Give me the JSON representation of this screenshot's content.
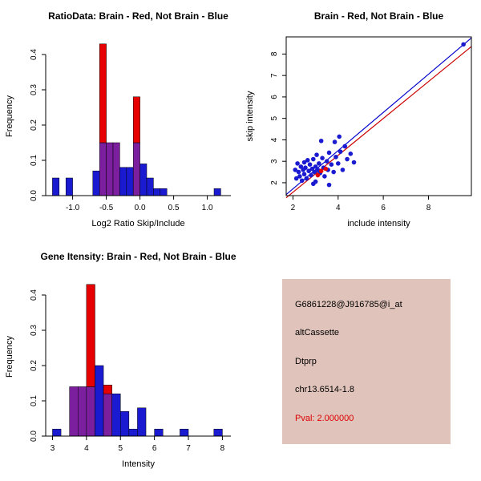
{
  "colors": {
    "blue": "#1a1ad1",
    "red": "#e60000",
    "overlap": "#7b1f9e",
    "line_blue": "#0000cc",
    "line_red": "#cc0000",
    "axis": "#000000",
    "info_box_bg": "#e0c3ba",
    "pval_red": "#dd0000",
    "text_black": "#000000"
  },
  "chart_data": [
    {
      "id": "ratio_hist",
      "type": "histogram",
      "title": "RatioData: Brain - Red, Not Brain - Blue",
      "xlabel": "Log2 Ratio Skip/Include",
      "ylabel": "Frequency",
      "xlim": [
        -1.4,
        1.35
      ],
      "ylim": [
        0,
        0.45
      ],
      "xticks": [
        {
          "v": -1.0,
          "t": "-1.0"
        },
        {
          "v": -0.5,
          "t": "-0.5"
        },
        {
          "v": 0.0,
          "t": "0.0"
        },
        {
          "v": 0.5,
          "t": "0.5"
        },
        {
          "v": 1.0,
          "t": "1.0"
        }
      ],
      "yticks": [
        {
          "v": 0.0,
          "t": "0.0"
        },
        {
          "v": 0.1,
          "t": "0.1"
        },
        {
          "v": 0.2,
          "t": "0.2"
        },
        {
          "v": 0.3,
          "t": "0.3"
        },
        {
          "v": 0.4,
          "t": "0.4"
        }
      ],
      "bin_width": 0.1,
      "blue_bins": [
        [
          -1.3,
          0.05
        ],
        [
          -1.1,
          0.05
        ],
        [
          -0.7,
          0.07
        ],
        [
          -0.6,
          0.15
        ],
        [
          -0.5,
          0.15
        ],
        [
          -0.4,
          0.15
        ],
        [
          -0.3,
          0.08
        ],
        [
          -0.2,
          0.08
        ],
        [
          -0.1,
          0.15
        ],
        [
          0.0,
          0.09
        ],
        [
          0.1,
          0.05
        ],
        [
          0.2,
          0.02
        ],
        [
          0.3,
          0.02
        ],
        [
          1.1,
          0.02
        ]
      ],
      "red_bins": [
        [
          -0.6,
          0.43
        ],
        [
          -0.5,
          0.15
        ],
        [
          -0.4,
          0.15
        ],
        [
          -0.1,
          0.28
        ]
      ]
    },
    {
      "id": "scatter",
      "type": "scatter",
      "title": "Brain - Red, Not Brain - Blue",
      "xlabel": "include intensity",
      "ylabel": "skip intensity",
      "xlim": [
        1.7,
        9.9
      ],
      "ylim": [
        1.4,
        8.8
      ],
      "xticks": [
        {
          "v": 2,
          "t": "2"
        },
        {
          "v": 4,
          "t": "4"
        },
        {
          "v": 6,
          "t": "6"
        },
        {
          "v": 8,
          "t": "8"
        }
      ],
      "yticks": [
        {
          "v": 2,
          "t": "2"
        },
        {
          "v": 3,
          "t": "3"
        },
        {
          "v": 4,
          "t": "4"
        },
        {
          "v": 5,
          "t": "5"
        },
        {
          "v": 6,
          "t": "6"
        },
        {
          "v": 7,
          "t": "7"
        },
        {
          "v": 8,
          "t": "8"
        }
      ],
      "blue_points": [
        [
          2.1,
          2.6
        ],
        [
          2.15,
          2.2
        ],
        [
          2.2,
          2.9
        ],
        [
          2.25,
          2.5
        ],
        [
          2.3,
          2.3
        ],
        [
          2.35,
          2.75
        ],
        [
          2.4,
          2.1
        ],
        [
          2.45,
          2.6
        ],
        [
          2.5,
          2.95
        ],
        [
          2.5,
          2.4
        ],
        [
          2.55,
          2.7
        ],
        [
          2.6,
          2.2
        ],
        [
          2.65,
          3.05
        ],
        [
          2.7,
          2.55
        ],
        [
          2.75,
          2.85
        ],
        [
          2.8,
          2.35
        ],
        [
          2.85,
          2.65
        ],
        [
          2.9,
          3.1
        ],
        [
          2.95,
          2.5
        ],
        [
          3.0,
          2.75
        ],
        [
          3.0,
          2.05
        ],
        [
          3.05,
          3.3
        ],
        [
          3.1,
          2.6
        ],
        [
          3.15,
          2.9
        ],
        [
          3.2,
          2.45
        ],
        [
          3.3,
          3.15
        ],
        [
          3.35,
          2.7
        ],
        [
          3.4,
          2.3
        ],
        [
          3.5,
          3.0
        ],
        [
          3.55,
          2.6
        ],
        [
          3.6,
          3.4
        ],
        [
          3.7,
          2.85
        ],
        [
          3.8,
          2.5
        ],
        [
          3.85,
          3.9
        ],
        [
          3.9,
          3.2
        ],
        [
          4.0,
          2.9
        ],
        [
          4.05,
          4.15
        ],
        [
          4.1,
          3.45
        ],
        [
          4.2,
          2.6
        ],
        [
          4.3,
          3.7
        ],
        [
          4.4,
          3.1
        ],
        [
          4.55,
          3.35
        ],
        [
          4.7,
          2.95
        ],
        [
          3.25,
          3.95
        ],
        [
          2.9,
          1.95
        ],
        [
          3.6,
          1.9
        ],
        [
          9.55,
          8.45
        ]
      ],
      "red_points": [
        [
          3.25,
          2.55
        ],
        [
          3.45,
          2.65
        ],
        [
          3.1,
          2.35
        ]
      ],
      "lines": [
        {
          "name": "fit-line-blue",
          "color_key": "line_blue",
          "x1": 1.7,
          "y1": 1.45,
          "x2": 9.9,
          "y2": 8.75
        },
        {
          "name": "fit-line-red",
          "color_key": "line_red",
          "x1": 1.7,
          "y1": 1.3,
          "x2": 9.9,
          "y2": 8.35
        }
      ]
    },
    {
      "id": "gene_hist",
      "type": "histogram",
      "title": "Gene Itensity: Brain - Red, Not Brain - Blue",
      "xlabel": "Intensity",
      "ylabel": "Frequency",
      "xlim": [
        2.8,
        8.25
      ],
      "ylim": [
        0,
        0.45
      ],
      "xticks": [
        {
          "v": 3,
          "t": "3"
        },
        {
          "v": 4,
          "t": "4"
        },
        {
          "v": 5,
          "t": "5"
        },
        {
          "v": 6,
          "t": "6"
        },
        {
          "v": 7,
          "t": "7"
        },
        {
          "v": 8,
          "t": "8"
        }
      ],
      "yticks": [
        {
          "v": 0.0,
          "t": "0.0"
        },
        {
          "v": 0.1,
          "t": "0.1"
        },
        {
          "v": 0.2,
          "t": "0.2"
        },
        {
          "v": 0.3,
          "t": "0.3"
        },
        {
          "v": 0.4,
          "t": "0.4"
        }
      ],
      "bin_width": 0.25,
      "blue_bins": [
        [
          3.0,
          0.02
        ],
        [
          3.5,
          0.14
        ],
        [
          3.75,
          0.14
        ],
        [
          4.0,
          0.14
        ],
        [
          4.25,
          0.2
        ],
        [
          4.5,
          0.12
        ],
        [
          4.75,
          0.12
        ],
        [
          5.0,
          0.07
        ],
        [
          5.25,
          0.02
        ],
        [
          5.5,
          0.08
        ],
        [
          6.0,
          0.02
        ],
        [
          6.75,
          0.02
        ],
        [
          7.75,
          0.02
        ]
      ],
      "red_bins": [
        [
          3.5,
          0.14
        ],
        [
          3.75,
          0.14
        ],
        [
          4.0,
          0.43
        ],
        [
          4.5,
          0.145
        ]
      ]
    }
  ],
  "info_panel": {
    "lines": [
      {
        "text": "G6861228@J916785@i_at",
        "color": "#000000"
      },
      {
        "text": "altCassette",
        "color": "#000000"
      },
      {
        "text": "Dtprp",
        "color": "#000000"
      },
      {
        "text": "chr13.6514-1.8",
        "color": "#000000"
      },
      {
        "text": "Pval: 2.000000",
        "color": "#dd0000"
      }
    ]
  }
}
